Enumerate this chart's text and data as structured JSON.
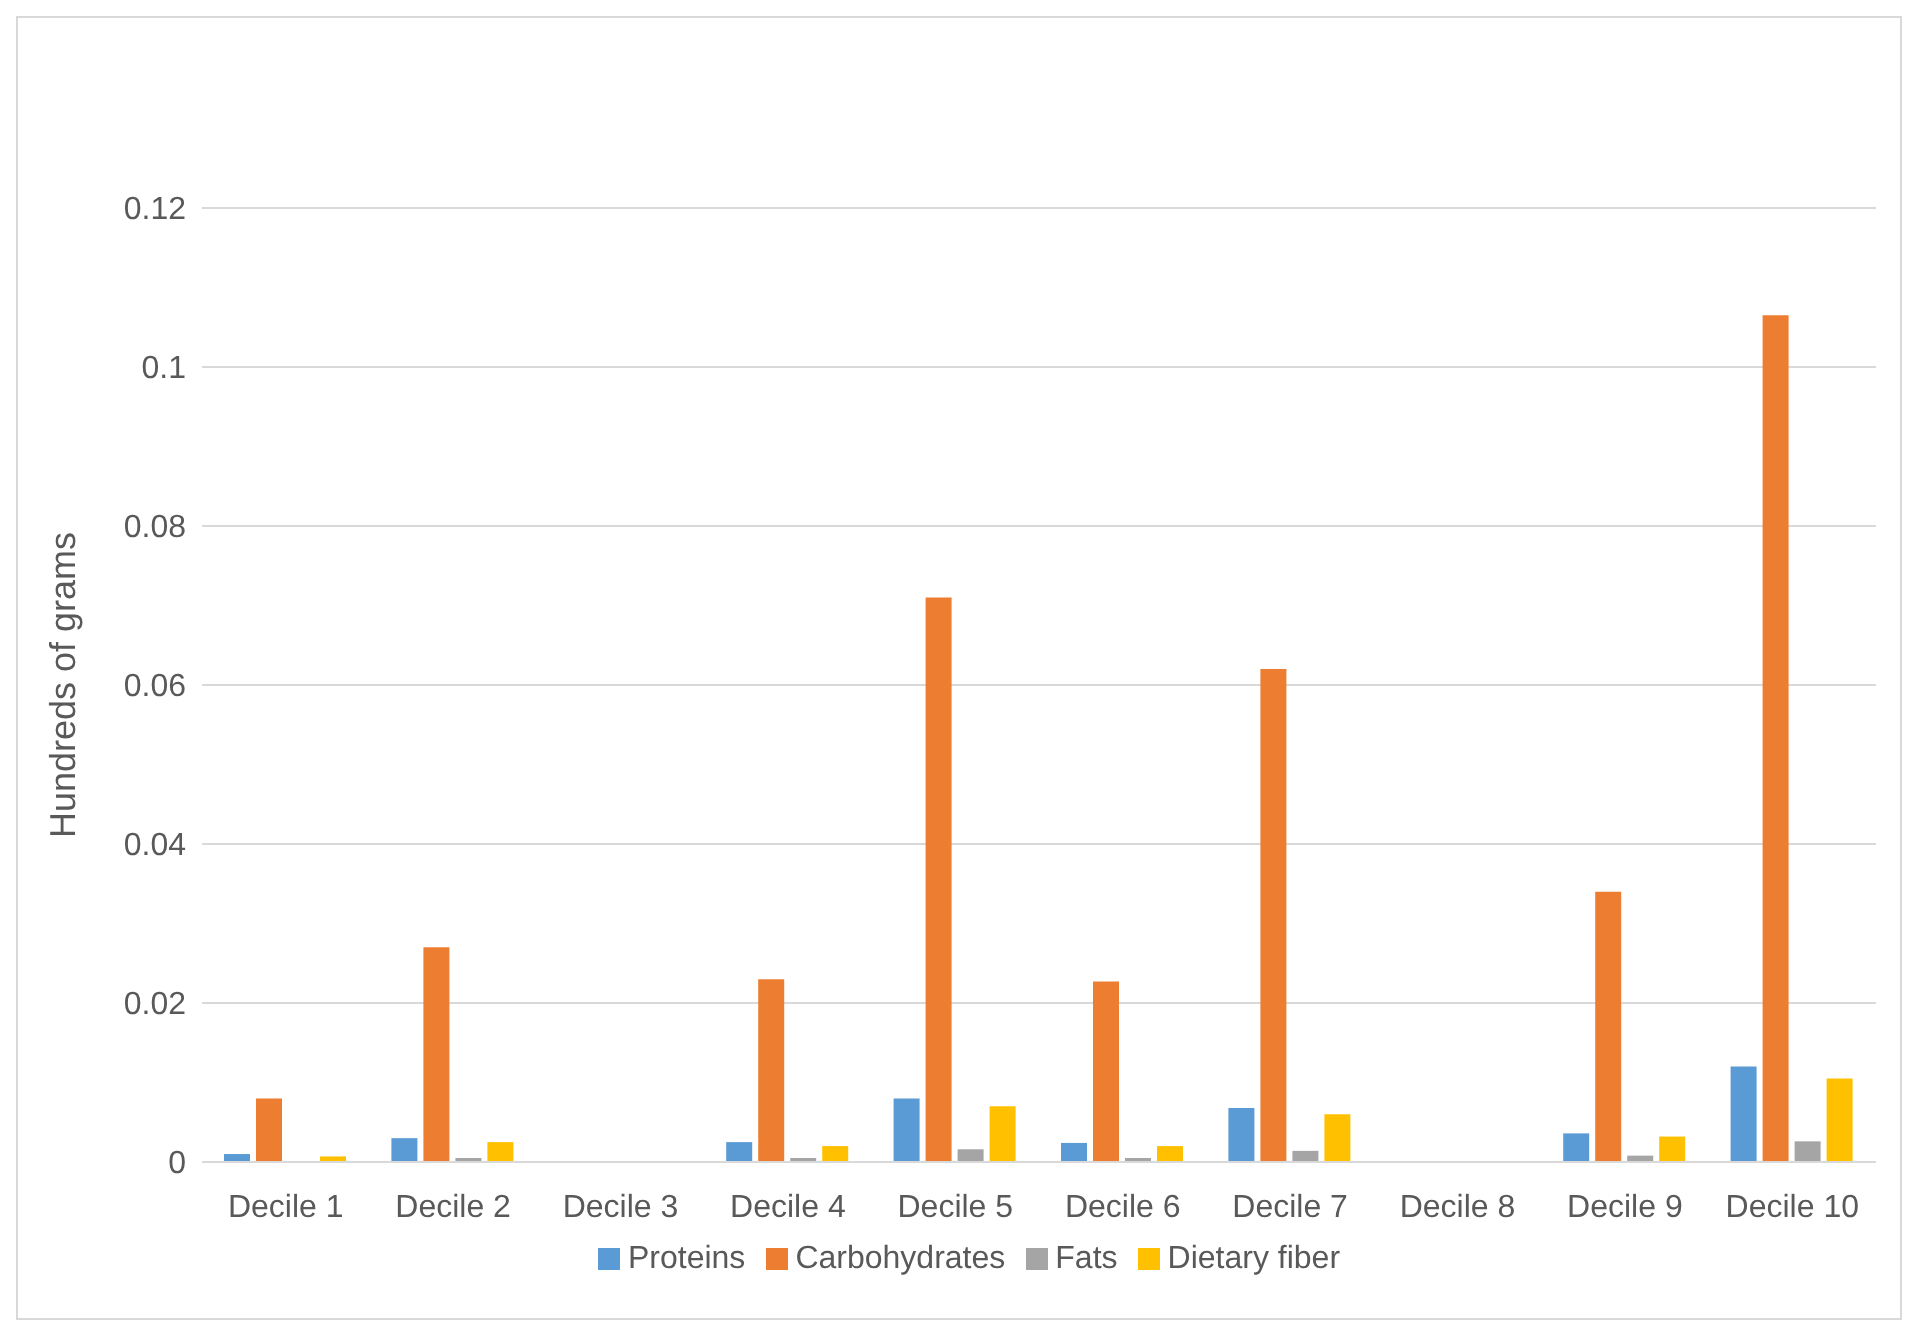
{
  "chart_data": {
    "type": "bar",
    "ylabel": "Hundreds of grams",
    "categories": [
      "Decile 1",
      "Decile 2",
      "Decile 3",
      "Decile 4",
      "Decile 5",
      "Decile 6",
      "Decile 7",
      "Decile 8",
      "Decile 9",
      "Decile 10"
    ],
    "series": [
      {
        "name": "Proteins",
        "color": "#5b9bd5",
        "values": [
          0.001,
          0.003,
          0,
          0.0025,
          0.008,
          0.0024,
          0.0068,
          0,
          0.0036,
          0.012
        ]
      },
      {
        "name": "Carbohydrates",
        "color": "#ed7d31",
        "values": [
          0.008,
          0.027,
          0,
          0.023,
          0.071,
          0.0227,
          0.062,
          0,
          0.034,
          0.1065
        ]
      },
      {
        "name": "Fats",
        "color": "#a5a5a5",
        "values": [
          0,
          0.0005,
          0,
          0.0005,
          0.0016,
          0.0005,
          0.0014,
          0,
          0.0008,
          0.0026
        ]
      },
      {
        "name": "Dietary fiber",
        "color": "#ffc000",
        "values": [
          0.0007,
          0.0025,
          0,
          0.002,
          0.007,
          0.002,
          0.006,
          0,
          0.0032,
          0.0105
        ]
      }
    ],
    "ylim": [
      0,
      0.12
    ],
    "yticks": [
      0,
      0.02,
      0.04,
      0.06,
      0.08,
      0.1,
      0.12
    ],
    "grid": "y",
    "legend": "bottom"
  }
}
